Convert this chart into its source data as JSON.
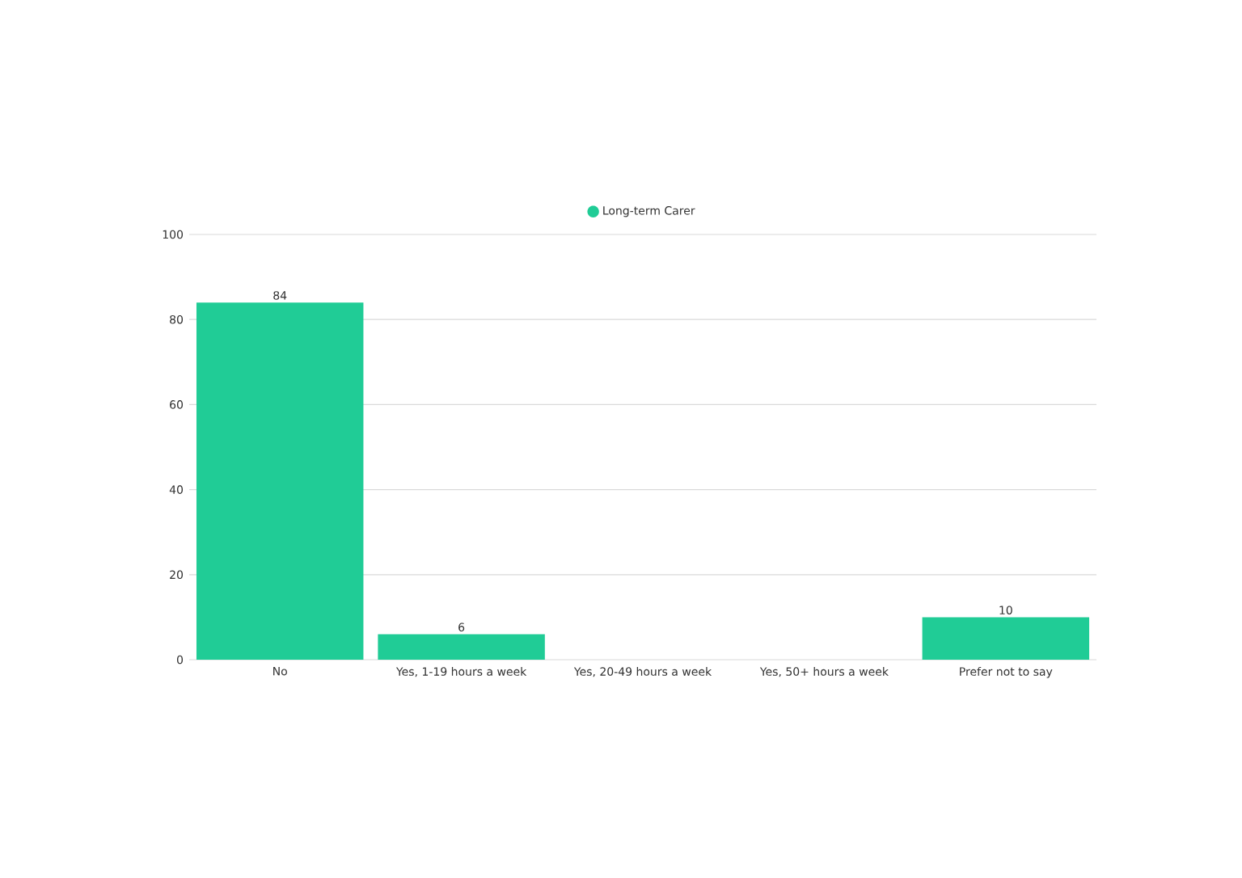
{
  "chart_data": {
    "type": "bar",
    "categories": [
      "No",
      "Yes, 1-19 hours a week",
      "Yes, 20-49 hours a week",
      "Yes, 50+ hours a week",
      "Prefer not to say"
    ],
    "series": [
      {
        "name": "Long-term Carer",
        "color": "#20cc96",
        "values": [
          84,
          6,
          0,
          0,
          10
        ],
        "value_labels": [
          "84",
          "6",
          null,
          null,
          "10"
        ]
      }
    ],
    "ylim": [
      0,
      100
    ],
    "yticks": [
      0,
      20,
      40,
      60,
      80,
      100
    ],
    "grid": "y",
    "legend": "top"
  }
}
